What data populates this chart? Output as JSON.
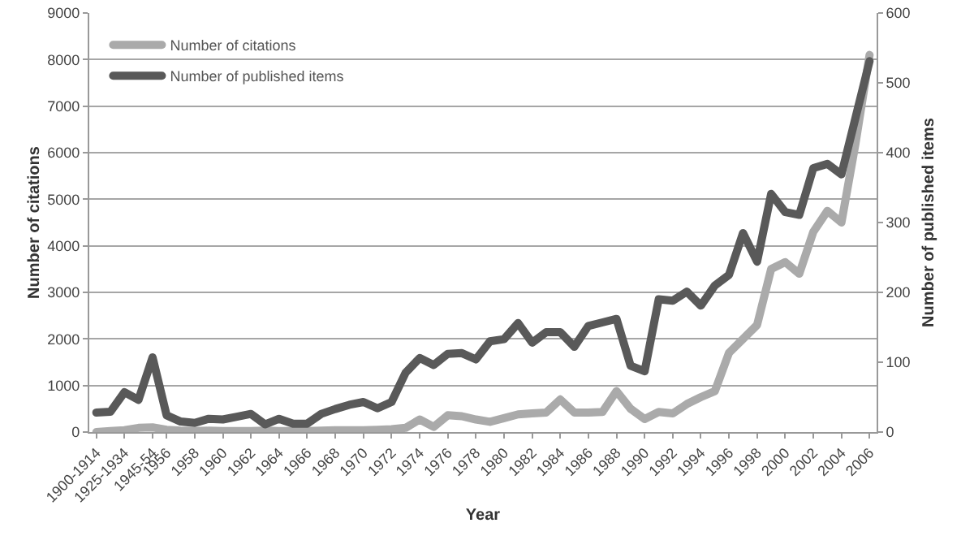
{
  "chart_data": {
    "type": "line",
    "xlabel": "Year",
    "ylabel": "Number of citations",
    "y2label": "Number of published items",
    "categories": [
      "1900-1914",
      null,
      "1925-1934",
      null,
      "1945-54",
      "1956",
      null,
      "1958",
      null,
      "1960",
      null,
      "1962",
      null,
      "1964",
      null,
      "1966",
      null,
      "1968",
      null,
      "1970",
      null,
      "1972",
      null,
      "1974",
      null,
      "1976",
      null,
      "1978",
      null,
      "1980",
      null,
      "1982",
      null,
      "1984",
      null,
      "1986",
      null,
      "1988",
      null,
      "1990",
      null,
      "1992",
      null,
      "1994",
      null,
      "1996",
      null,
      "1998",
      null,
      "2000",
      null,
      "2002",
      null,
      "2004",
      null,
      "2006"
    ],
    "series": [
      {
        "name": "Number of citations",
        "color": "#aaaaaa",
        "values": [
          0,
          20,
          40,
          90,
          100,
          50,
          30,
          20,
          30,
          20,
          20,
          20,
          30,
          20,
          20,
          20,
          30,
          40,
          40,
          40,
          50,
          60,
          90,
          270,
          110,
          360,
          340,
          270,
          220,
          300,
          380,
          400,
          420,
          700,
          420,
          420,
          430,
          880,
          500,
          280,
          430,
          400,
          600,
          750,
          880,
          1700,
          2000,
          2300,
          3500,
          3650,
          3400,
          4300,
          4750,
          4500,
          6200,
          8100
        ]
      },
      {
        "name": "Number of published items",
        "color": "#595959",
        "axis": "y2",
        "values": [
          28,
          29,
          57,
          46,
          107,
          24,
          15,
          13,
          19,
          18,
          22,
          26,
          11,
          19,
          12,
          12,
          26,
          33,
          39,
          43,
          34,
          43,
          85,
          106,
          96,
          112,
          113,
          104,
          130,
          133,
          156,
          128,
          143,
          143,
          122,
          152,
          157,
          162,
          95,
          87,
          190,
          188,
          201,
          181,
          210,
          225,
          285,
          244,
          341,
          315,
          311,
          378,
          384,
          369,
          450,
          531
        ]
      }
    ],
    "ylim": [
      0,
      9000
    ],
    "yticks": [
      0,
      1000,
      2000,
      3000,
      4000,
      5000,
      6000,
      7000,
      8000,
      9000
    ],
    "y2lim": [
      0,
      600
    ],
    "y2ticks": [
      0,
      100,
      200,
      300,
      400,
      500,
      600
    ],
    "grid": "y",
    "legend": "top left",
    "marker": "none",
    "line_style": "solid"
  }
}
